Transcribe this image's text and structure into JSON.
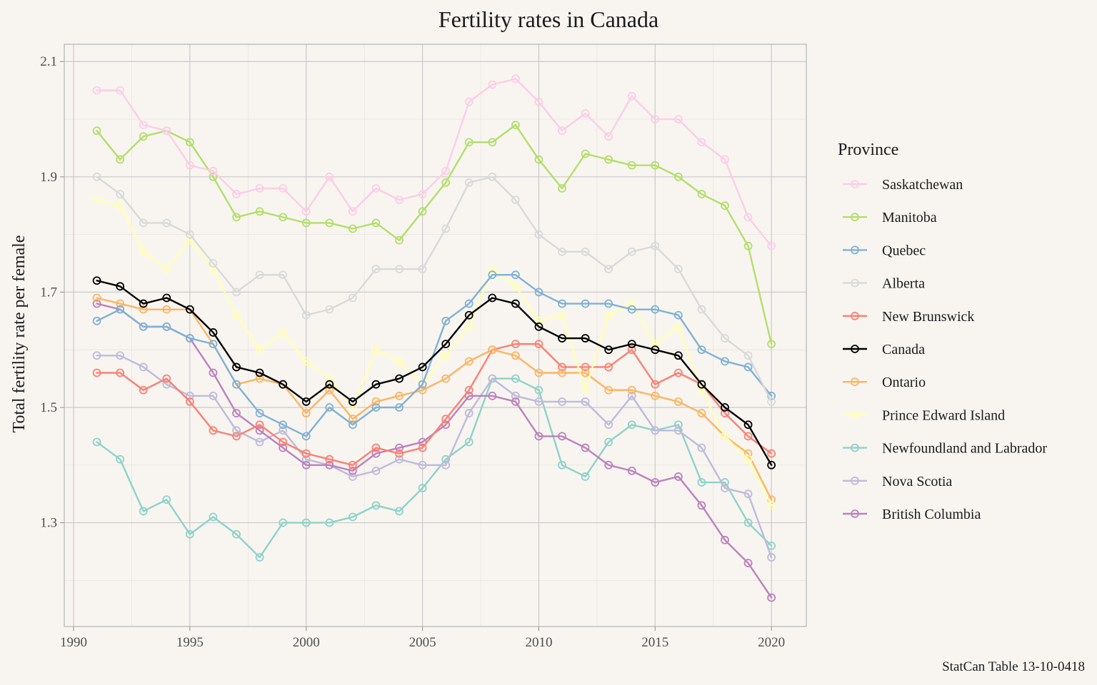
{
  "chart_data": {
    "type": "line",
    "title": "Fertility rates in Canada",
    "ylabel": "Total fertility rate per female",
    "caption": "StatCan Table 13-10-0418",
    "legend_title": "Province",
    "xlim": [
      1989.6,
      2021.5
    ],
    "ylim": [
      1.12,
      2.13
    ],
    "x_ticks": [
      1990,
      1995,
      2000,
      2005,
      2010,
      2015,
      2020
    ],
    "y_ticks": [
      1.3,
      1.5,
      1.7,
      1.9,
      2.1
    ],
    "x_tick_labels": [
      "1990",
      "1995",
      "2000",
      "2005",
      "2010",
      "2015",
      "2020"
    ],
    "y_tick_labels": [
      "1.3",
      "1.5",
      "1.7",
      "1.9",
      "2.1"
    ],
    "grid": true,
    "legend_position": "right",
    "x": [
      1991,
      1992,
      1993,
      1994,
      1995,
      1996,
      1997,
      1998,
      1999,
      2000,
      2001,
      2002,
      2003,
      2004,
      2005,
      2006,
      2007,
      2008,
      2009,
      2010,
      2011,
      2012,
      2013,
      2014,
      2015,
      2016,
      2017,
      2018,
      2019,
      2020
    ],
    "series": [
      {
        "name": "Saskatchewan",
        "color": "#fccde5",
        "values": [
          2.05,
          2.05,
          1.99,
          1.98,
          1.92,
          1.91,
          1.87,
          1.88,
          1.88,
          1.84,
          1.9,
          1.84,
          1.88,
          1.86,
          1.87,
          1.91,
          2.03,
          2.06,
          2.07,
          2.03,
          1.98,
          2.01,
          1.97,
          2.04,
          2.0,
          2.0,
          1.96,
          1.93,
          1.83,
          1.78
        ]
      },
      {
        "name": "Manitoba",
        "color": "#b3de69",
        "values": [
          1.98,
          1.93,
          1.97,
          1.98,
          1.96,
          1.9,
          1.83,
          1.84,
          1.83,
          1.82,
          1.82,
          1.81,
          1.82,
          1.79,
          1.84,
          1.89,
          1.96,
          1.96,
          1.99,
          1.93,
          1.88,
          1.94,
          1.93,
          1.92,
          1.92,
          1.9,
          1.87,
          1.85,
          1.78,
          1.61
        ]
      },
      {
        "name": "Quebec",
        "color": "#80b1d3",
        "values": [
          1.65,
          1.67,
          1.64,
          1.64,
          1.62,
          1.61,
          1.54,
          1.49,
          1.47,
          1.45,
          1.5,
          1.47,
          1.5,
          1.5,
          1.54,
          1.65,
          1.68,
          1.73,
          1.73,
          1.7,
          1.68,
          1.68,
          1.68,
          1.67,
          1.67,
          1.66,
          1.6,
          1.58,
          1.57,
          1.52
        ]
      },
      {
        "name": "Alberta",
        "color": "#d9d9d9",
        "values": [
          1.9,
          1.87,
          1.82,
          1.82,
          1.8,
          1.75,
          1.7,
          1.73,
          1.73,
          1.66,
          1.67,
          1.69,
          1.74,
          1.74,
          1.74,
          1.81,
          1.89,
          1.9,
          1.86,
          1.8,
          1.77,
          1.77,
          1.74,
          1.77,
          1.78,
          1.74,
          1.67,
          1.62,
          1.59,
          1.51
        ]
      },
      {
        "name": "New Brunswick",
        "color": "#fb8072",
        "values": [
          1.56,
          1.56,
          1.53,
          1.55,
          1.51,
          1.46,
          1.45,
          1.47,
          1.44,
          1.42,
          1.41,
          1.4,
          1.43,
          1.42,
          1.43,
          1.48,
          1.53,
          1.6,
          1.61,
          1.61,
          1.57,
          1.57,
          1.57,
          1.6,
          1.54,
          1.56,
          1.54,
          1.49,
          1.45,
          1.42
        ]
      },
      {
        "name": "Canada",
        "color": "#000000",
        "values": [
          1.72,
          1.71,
          1.68,
          1.69,
          1.67,
          1.63,
          1.57,
          1.56,
          1.54,
          1.51,
          1.54,
          1.51,
          1.54,
          1.55,
          1.57,
          1.61,
          1.66,
          1.69,
          1.68,
          1.64,
          1.62,
          1.62,
          1.6,
          1.61,
          1.6,
          1.59,
          1.54,
          1.5,
          1.47,
          1.4
        ]
      },
      {
        "name": "Ontario",
        "color": "#fdb462",
        "values": [
          1.69,
          1.68,
          1.67,
          1.67,
          1.67,
          1.61,
          1.54,
          1.55,
          1.54,
          1.49,
          1.53,
          1.48,
          1.51,
          1.52,
          1.53,
          1.55,
          1.58,
          1.6,
          1.59,
          1.56,
          1.56,
          1.56,
          1.53,
          1.53,
          1.52,
          1.51,
          1.49,
          1.45,
          1.42,
          1.34
        ]
      },
      {
        "name": "Prince Edward Island",
        "color": "#ffffb3",
        "values": [
          1.86,
          1.85,
          1.77,
          1.74,
          1.79,
          1.74,
          1.66,
          1.6,
          1.63,
          1.58,
          1.55,
          1.5,
          1.6,
          1.58,
          1.54,
          1.59,
          1.64,
          1.74,
          1.71,
          1.65,
          1.66,
          1.53,
          1.66,
          1.68,
          1.61,
          1.64,
          1.53,
          1.45,
          1.41,
          1.33
        ]
      },
      {
        "name": "Newfoundland and Labrador",
        "color": "#8dd3c7",
        "values": [
          1.44,
          1.41,
          1.32,
          1.34,
          1.28,
          1.31,
          1.28,
          1.24,
          1.3,
          1.3,
          1.3,
          1.31,
          1.33,
          1.32,
          1.36,
          1.41,
          1.44,
          1.55,
          1.55,
          1.53,
          1.4,
          1.38,
          1.44,
          1.47,
          1.46,
          1.47,
          1.37,
          1.37,
          1.3,
          1.26
        ]
      },
      {
        "name": "Nova Scotia",
        "color": "#bebada",
        "values": [
          1.59,
          1.59,
          1.57,
          1.54,
          1.52,
          1.52,
          1.46,
          1.44,
          1.46,
          1.41,
          1.4,
          1.38,
          1.39,
          1.41,
          1.4,
          1.4,
          1.49,
          1.55,
          1.52,
          1.51,
          1.51,
          1.51,
          1.47,
          1.52,
          1.46,
          1.46,
          1.43,
          1.36,
          1.35,
          1.24
        ]
      },
      {
        "name": "British Columbia",
        "color": "#bc80bd",
        "values": [
          1.68,
          1.67,
          1.64,
          1.64,
          1.62,
          1.56,
          1.49,
          1.46,
          1.43,
          1.4,
          1.4,
          1.39,
          1.42,
          1.43,
          1.44,
          1.47,
          1.52,
          1.52,
          1.51,
          1.45,
          1.45,
          1.43,
          1.4,
          1.39,
          1.37,
          1.38,
          1.33,
          1.27,
          1.23,
          1.17
        ]
      }
    ],
    "draw_order": [
      "Newfoundland and Labrador",
      "Nova Scotia",
      "British Columbia",
      "New Brunswick",
      "Ontario",
      "Prince Edward Island",
      "Quebec",
      "Alberta",
      "Manitoba",
      "Saskatchewan",
      "Canada"
    ]
  }
}
